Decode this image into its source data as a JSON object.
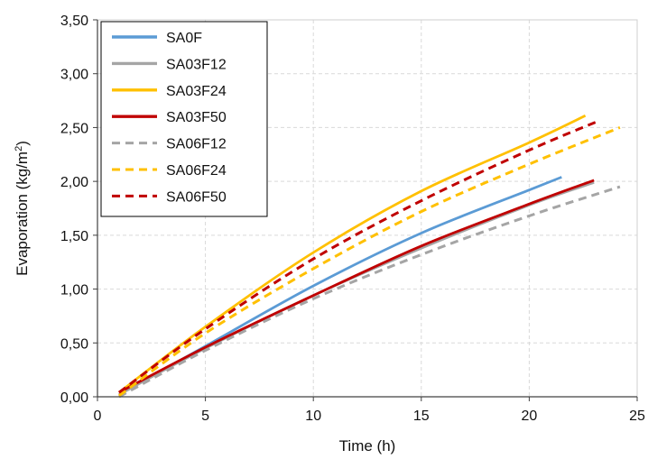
{
  "chart_data": {
    "type": "line",
    "xlabel": "Time (h)",
    "ylabel": "Evaporation (kg/m²)",
    "ylabel_parts": {
      "main": "Evaporation (kg/m",
      "sup": "2",
      "tail": ")"
    },
    "xlim": [
      0,
      25
    ],
    "ylim": [
      0,
      3.5
    ],
    "x_ticks": [
      0,
      5,
      10,
      15,
      20,
      25
    ],
    "x_tick_labels": [
      "0",
      "5",
      "10",
      "15",
      "20",
      "25"
    ],
    "y_ticks": [
      0,
      0.5,
      1.0,
      1.5,
      2.0,
      2.5,
      3.0,
      3.5
    ],
    "y_tick_labels": [
      "0,00",
      "0,50",
      "1,00",
      "1,50",
      "2,00",
      "2,50",
      "3,00",
      "3,50"
    ],
    "grid": true,
    "legend_position": "top-left",
    "series": [
      {
        "name": "SA0F",
        "color": "#5B9BD5",
        "dash": "solid",
        "x": [
          1,
          5,
          10,
          15,
          20,
          21.5
        ],
        "y": [
          0.02,
          0.47,
          1.03,
          1.52,
          1.92,
          2.04
        ]
      },
      {
        "name": "SA03F12",
        "color": "#A5A5A5",
        "dash": "solid",
        "x": [
          1,
          5,
          10,
          15,
          20,
          23
        ],
        "y": [
          0.02,
          0.45,
          0.94,
          1.38,
          1.78,
          1.99
        ]
      },
      {
        "name": "SA03F24",
        "color": "#FFC000",
        "dash": "solid",
        "x": [
          1,
          5,
          10,
          15,
          20,
          22.6
        ],
        "y": [
          0.04,
          0.65,
          1.34,
          1.91,
          2.36,
          2.61
        ]
      },
      {
        "name": "SA03F50",
        "color": "#C00000",
        "dash": "solid",
        "x": [
          1,
          5,
          10,
          15,
          20,
          23
        ],
        "y": [
          0.04,
          0.46,
          0.94,
          1.4,
          1.79,
          2.01
        ]
      },
      {
        "name": "SA06F12",
        "color": "#A5A5A5",
        "dash": "dashed",
        "x": [
          1,
          5,
          10,
          15,
          20,
          24.2
        ],
        "y": [
          0.0,
          0.43,
          0.91,
          1.32,
          1.68,
          1.95
        ]
      },
      {
        "name": "SA06F24",
        "color": "#FFC000",
        "dash": "dashed",
        "x": [
          1,
          5,
          10,
          15,
          20,
          24.2
        ],
        "y": [
          0.01,
          0.59,
          1.19,
          1.72,
          2.16,
          2.5
        ]
      },
      {
        "name": "SA06F50",
        "color": "#C00000",
        "dash": "dashed",
        "x": [
          1,
          5,
          10,
          15,
          20,
          23.2
        ],
        "y": [
          0.04,
          0.63,
          1.28,
          1.82,
          2.29,
          2.56
        ]
      }
    ]
  }
}
